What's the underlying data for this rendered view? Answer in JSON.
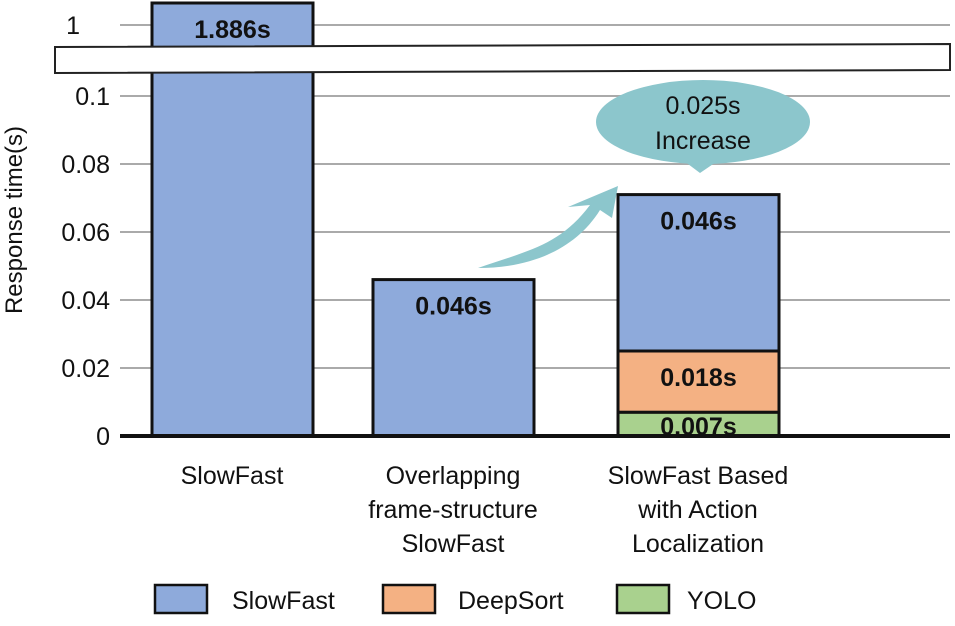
{
  "chart_data": {
    "type": "bar",
    "stacked": true,
    "ylabel": "Response time(s)",
    "xlabel": "",
    "y_axis_break": true,
    "yticks": [
      "0",
      "0.02",
      "0.04",
      "0.06",
      "0.08",
      "0.1",
      "1"
    ],
    "ylim": [
      0,
      0.1
    ],
    "grid": true,
    "legend_position": "bottom",
    "categories": [
      [
        "SlowFast"
      ],
      [
        "Overlapping",
        "frame-structure",
        "SlowFast"
      ],
      [
        "SlowFast Based",
        "with Action",
        "Localization"
      ]
    ],
    "series": [
      {
        "name": "SlowFast",
        "color": "#8eaadb",
        "values": [
          1.886,
          0.046,
          0.046
        ],
        "labels": [
          "1.886s",
          "0.046s",
          "0.046s"
        ]
      },
      {
        "name": "DeepSort",
        "color": "#f4b183",
        "values": [
          0,
          0,
          0.018
        ],
        "labels": [
          "",
          "",
          "0.018s"
        ]
      },
      {
        "name": "YOLO",
        "color": "#a9d18e",
        "values": [
          0,
          0,
          0.007
        ],
        "labels": [
          "",
          "",
          "0.007s"
        ]
      }
    ],
    "annotation": {
      "lines": [
        "0.025s",
        "Increase"
      ],
      "color": "#8cc6cc"
    }
  }
}
